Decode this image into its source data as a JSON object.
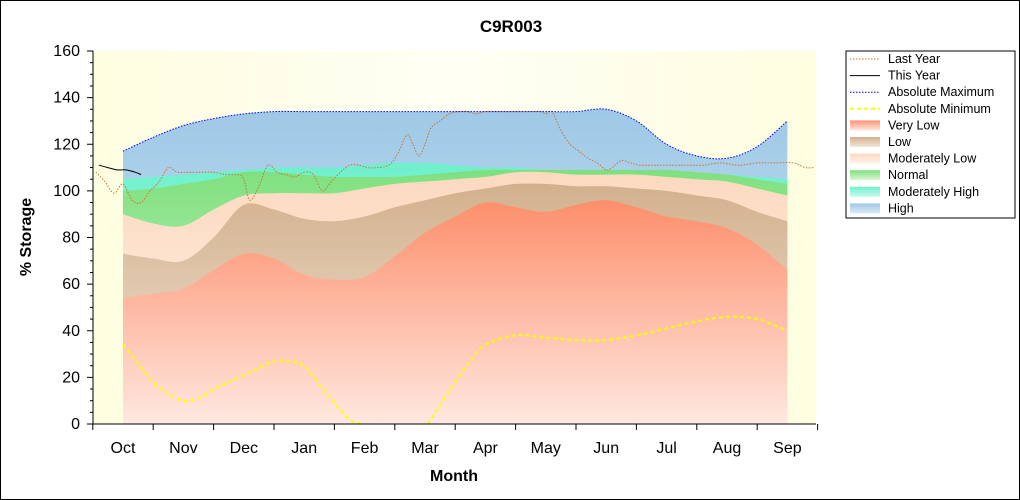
{
  "chart_data": {
    "type": "area",
    "title": "C9R003",
    "xlabel": "Month",
    "ylabel": "% Storage",
    "ylim": [
      0,
      160
    ],
    "yticks": [
      0,
      20,
      40,
      60,
      80,
      100,
      120,
      140,
      160
    ],
    "categories": [
      "Oct",
      "Nov",
      "Dec",
      "Jan",
      "Feb",
      "Mar",
      "Apr",
      "May",
      "Jun",
      "Jul",
      "Aug",
      "Sep"
    ],
    "x_points": [
      "Oct",
      "Oct-Nov",
      "Nov",
      "Nov-Dec",
      "Dec",
      "Dec-Jan",
      "Jan",
      "Jan-Feb",
      "Feb",
      "Feb-Mar",
      "Mar",
      "Mar-Apr",
      "Apr",
      "Apr-May",
      "May",
      "May-Jun",
      "Jun",
      "Jun-Jul",
      "Jul",
      "Jul-Aug",
      "Aug",
      "Aug-Sep",
      "Sep"
    ],
    "bands": [
      {
        "name": "Very Low",
        "color": "#ff8c69",
        "upper": [
          54,
          56,
          58,
          66,
          73,
          71,
          64,
          62,
          63,
          72,
          82,
          89,
          95,
          93,
          91,
          94,
          96,
          93,
          89,
          87,
          84,
          77,
          66
        ]
      },
      {
        "name": "Low",
        "color": "#d7b99a",
        "upper": [
          73,
          71,
          70,
          80,
          94,
          92,
          88,
          87,
          89,
          93,
          96,
          99,
          101,
          103,
          103,
          102,
          102,
          101,
          100,
          98,
          96,
          91,
          87
        ]
      },
      {
        "name": "Moderately Low",
        "color": "#fde3cf",
        "upper": [
          90,
          86,
          85,
          92,
          98,
          99,
          99,
          99,
          101,
          103,
          104,
          105,
          106,
          108,
          108,
          107,
          107,
          107,
          106,
          105,
          104,
          101,
          98
        ]
      },
      {
        "name": "Normal",
        "color": "#8ce68c",
        "upper": [
          100,
          101,
          103,
          105,
          108,
          108,
          107,
          106,
          106,
          106,
          107,
          108,
          109,
          109,
          109,
          109,
          109,
          109,
          109,
          108,
          107,
          105,
          103
        ]
      },
      {
        "name": "Moderately High",
        "color": "#7ff5d4",
        "upper": [
          105,
          106,
          107,
          108,
          109,
          110,
          110,
          110,
          111,
          112,
          112,
          111,
          110,
          110,
          109,
          109,
          109,
          109,
          108,
          108,
          107,
          106,
          105
        ]
      },
      {
        "name": "High",
        "color": "#a9cfea",
        "upper": [
          117,
          123,
          128,
          131,
          133,
          134,
          134,
          134,
          134,
          134,
          134,
          134,
          134,
          134,
          134,
          134,
          135,
          130,
          120,
          115,
          114,
          119,
          130
        ]
      }
    ],
    "series": [
      {
        "name": "Last Year",
        "color": "#c87533",
        "style": "dotted",
        "x": [
          -0.45,
          -0.3,
          -0.15,
          0,
          0.15,
          0.3,
          0.45,
          0.6,
          0.75,
          0.9,
          1.1,
          1.3,
          1.5,
          1.7,
          1.9,
          2.0,
          2.1,
          2.25,
          2.4,
          2.55,
          2.7,
          2.85,
          3.0,
          3.15,
          3.3,
          3.45,
          3.6,
          3.75,
          3.9,
          4.05,
          4.2,
          4.4,
          4.55,
          4.7,
          4.8,
          4.9,
          5.0,
          5.1,
          5.25,
          5.4,
          5.55,
          5.7,
          5.85,
          6.0,
          6.3,
          6.6,
          6.9,
          7.0,
          7.1,
          7.25,
          7.4,
          7.55,
          7.7,
          7.85,
          8.0,
          8.1,
          8.25,
          8.4,
          8.55,
          8.7,
          8.85,
          9.0,
          9.3,
          9.6,
          9.9,
          10.2,
          10.5,
          10.8,
          11.1,
          11.3,
          11.45
        ],
        "y": [
          108,
          104,
          99,
          103,
          96,
          95,
          100,
          104,
          110,
          108,
          108,
          108,
          108,
          107,
          107,
          105,
          96,
          102,
          111,
          108,
          107,
          106,
          108,
          107,
          100,
          104,
          108,
          111,
          111,
          110,
          110,
          111,
          116,
          124,
          120,
          115,
          120,
          127,
          130,
          133,
          134,
          134,
          133,
          134,
          134,
          134,
          134,
          133,
          134,
          126,
          120,
          117,
          114,
          112,
          109,
          110,
          113,
          112,
          111,
          111,
          111,
          111,
          111,
          111,
          112,
          111,
          112,
          112,
          112,
          110,
          110
        ]
      },
      {
        "name": "This Year",
        "color": "#000000",
        "style": "solid",
        "x": [
          -0.4,
          -0.25,
          -0.1,
          0.05,
          0.2,
          0.3
        ],
        "y": [
          111,
          110,
          109,
          109,
          108,
          107
        ]
      },
      {
        "name": "Absolute Maximum",
        "color": "#0000ff",
        "style": "dotted",
        "x": [
          0,
          0.5,
          1,
          1.5,
          2,
          2.5,
          3,
          3.5,
          4,
          4.5,
          5,
          5.5,
          6,
          6.5,
          7,
          7.5,
          8,
          8.5,
          9,
          9.5,
          10,
          10.5,
          11
        ],
        "y": [
          117,
          123,
          128,
          131,
          133,
          134,
          134,
          134,
          134,
          134,
          134,
          134,
          134,
          134,
          134,
          134,
          135,
          130,
          120,
          115,
          114,
          119,
          130
        ]
      },
      {
        "name": "Absolute Minimum",
        "color": "#ffff00",
        "style": "dashed",
        "segments": [
          {
            "x": [
              0,
              0.25,
              0.5,
              0.75,
              1.0,
              1.25,
              1.5,
              1.75,
              2.0,
              2.25,
              2.5,
              2.75,
              3.0,
              3.25,
              3.5,
              3.75,
              3.95
            ],
            "y": [
              34,
              26,
              18,
              13,
              10,
              11,
              15,
              18,
              21,
              24,
              27,
              27,
              25,
              17,
              9,
              2,
              0
            ]
          },
          {
            "x": [
              5.05,
              5.25,
              5.5,
              5.75,
              6.0,
              6.5,
              7.0,
              7.5,
              8.0,
              8.5,
              9.0,
              9.5,
              10.0,
              10.5,
              11.0
            ],
            "y": [
              0,
              8,
              18,
              27,
              34,
              38,
              37,
              36,
              36,
              38,
              41,
              44,
              46,
              45,
              40
            ]
          }
        ]
      }
    ],
    "legend": {
      "placement": "right",
      "entries": [
        {
          "label": "Last Year",
          "kind": "line",
          "color": "#c87533",
          "style": "dotted"
        },
        {
          "label": "This Year",
          "kind": "line",
          "color": "#000000",
          "style": "solid"
        },
        {
          "label": "Absolute Maximum",
          "kind": "line",
          "color": "#0000ff",
          "style": "dotted"
        },
        {
          "label": "Absolute Minimum",
          "kind": "line",
          "color": "#ffff00",
          "style": "dashed"
        },
        {
          "label": "Very Low",
          "kind": "band",
          "color": "#ff8c69"
        },
        {
          "label": "Low",
          "kind": "band",
          "color": "#d7b99a"
        },
        {
          "label": "Moderately Low",
          "kind": "band",
          "color": "#fde3cf"
        },
        {
          "label": "Normal",
          "kind": "band",
          "color": "#8ce68c"
        },
        {
          "label": "Moderately High",
          "kind": "band",
          "color": "#7ff5d4"
        },
        {
          "label": "High",
          "kind": "band",
          "color": "#a9cfea"
        }
      ]
    },
    "plot_background": "#fefee8",
    "grid": false
  }
}
